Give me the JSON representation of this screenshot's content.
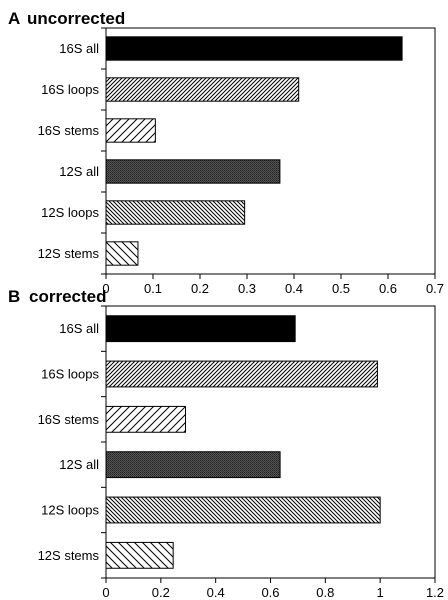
{
  "chart_data": [
    {
      "type": "bar",
      "orientation": "horizontal",
      "panel": "A",
      "title": "uncorrected",
      "categories": [
        "16S all",
        "16S loops",
        "16S stems",
        "12S all",
        "12S loops",
        "12S stems"
      ],
      "values": [
        0.63,
        0.41,
        0.105,
        0.37,
        0.295,
        0.068
      ],
      "xlim": [
        0,
        0.7
      ],
      "xticks": [
        0,
        0.1,
        0.2,
        0.3,
        0.4,
        0.5,
        0.6,
        0.7
      ],
      "xtick_labels": [
        "0",
        "0.1",
        "0.2",
        "0.3",
        "0.4",
        "0.5",
        "0.6",
        "0.7"
      ],
      "fills": [
        "solid-black",
        "hatch-fine-diagonal",
        "hatch-wide-diagonal",
        "dotted-gray",
        "hatch-back-diagonal",
        "hatch-wide-back-diagonal"
      ],
      "xlabel": "",
      "ylabel": "",
      "grid": false
    },
    {
      "type": "bar",
      "orientation": "horizontal",
      "panel": "B",
      "title": "corrected",
      "categories": [
        "16S all",
        "16S loops",
        "16S stems",
        "12S all",
        "12S loops",
        "12S stems"
      ],
      "values": [
        0.69,
        0.99,
        0.29,
        0.635,
        1.0,
        0.245
      ],
      "xlim": [
        0,
        1.2
      ],
      "xticks": [
        0,
        0.2,
        0.4,
        0.6,
        0.8,
        1,
        1.2
      ],
      "xtick_labels": [
        "0",
        "0.2",
        "0.4",
        "0.6",
        "0.8",
        "1",
        "1.2"
      ],
      "fills": [
        "solid-black",
        "hatch-fine-diagonal",
        "hatch-wide-diagonal",
        "dotted-gray",
        "hatch-back-diagonal",
        "hatch-wide-back-diagonal"
      ],
      "xlabel": "",
      "ylabel": "",
      "grid": false
    }
  ]
}
